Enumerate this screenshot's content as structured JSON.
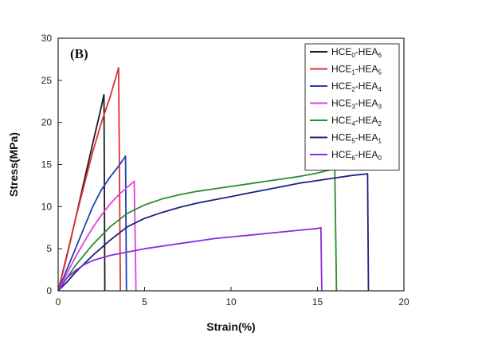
{
  "chart_data": {
    "type": "line",
    "panel_label": "(B)",
    "xlabel": "Strain(%)",
    "ylabel": "Stress(MPa)",
    "xlim": [
      0,
      20
    ],
    "ylim": [
      0,
      30
    ],
    "x_ticks": [
      "0",
      "5",
      "10",
      "15",
      "20"
    ],
    "y_ticks": [
      "0",
      "5",
      "10",
      "15",
      "20",
      "25",
      "30"
    ],
    "legend_position": "top-right",
    "series": [
      {
        "name": "HCE0-HEA6",
        "name_parts": [
          "HCE",
          "0",
          "-HEA",
          "6"
        ],
        "color": "#1a1a1a",
        "points": [
          [
            0,
            0
          ],
          [
            0.3,
            2.5
          ],
          [
            0.6,
            5
          ],
          [
            1,
            8.5
          ],
          [
            1.5,
            13
          ],
          [
            2,
            17.5
          ],
          [
            2.4,
            21
          ],
          [
            2.65,
            23.3
          ],
          [
            2.7,
            0
          ]
        ]
      },
      {
        "name": "HCE1-HEA5",
        "name_parts": [
          "HCE",
          "1",
          "-HEA",
          "5"
        ],
        "color": "#e03030",
        "points": [
          [
            0,
            0
          ],
          [
            0.5,
            4
          ],
          [
            1,
            8.5
          ],
          [
            1.5,
            12.5
          ],
          [
            2,
            16.5
          ],
          [
            2.5,
            20
          ],
          [
            3,
            23
          ],
          [
            3.5,
            26.5
          ],
          [
            3.6,
            0
          ]
        ]
      },
      {
        "name": "HCE2-HEA4",
        "name_parts": [
          "HCE",
          "2",
          "-HEA",
          "4"
        ],
        "color": "#2040b0",
        "points": [
          [
            0,
            0
          ],
          [
            0.5,
            2.5
          ],
          [
            1,
            5
          ],
          [
            1.5,
            7.5
          ],
          [
            2,
            10
          ],
          [
            2.5,
            12
          ],
          [
            3,
            13.5
          ],
          [
            3.5,
            14.8
          ],
          [
            3.9,
            16
          ],
          [
            3.95,
            0
          ]
        ]
      },
      {
        "name": "HCE3-HEA3",
        "name_parts": [
          "HCE",
          "3",
          "-HEA",
          "3"
        ],
        "color": "#e040e0",
        "points": [
          [
            0,
            0
          ],
          [
            0.5,
            2
          ],
          [
            1,
            4
          ],
          [
            1.5,
            5.8
          ],
          [
            2,
            7.5
          ],
          [
            2.5,
            9
          ],
          [
            3,
            10.3
          ],
          [
            3.5,
            11.4
          ],
          [
            4,
            12.3
          ],
          [
            4.4,
            13
          ],
          [
            4.5,
            0
          ]
        ]
      },
      {
        "name": "HCE4-HEA2",
        "name_parts": [
          "HCE",
          "4",
          "-HEA",
          "2"
        ],
        "color": "#2e8b2e",
        "points": [
          [
            0,
            0
          ],
          [
            0.5,
            1.5
          ],
          [
            1,
            3
          ],
          [
            2,
            5.5
          ],
          [
            3,
            7.6
          ],
          [
            4,
            9.2
          ],
          [
            5,
            10.2
          ],
          [
            6,
            10.9
          ],
          [
            7,
            11.4
          ],
          [
            8,
            11.8
          ],
          [
            9,
            12.1
          ],
          [
            10,
            12.4
          ],
          [
            11,
            12.7
          ],
          [
            12,
            13
          ],
          [
            13,
            13.3
          ],
          [
            14,
            13.6
          ],
          [
            15,
            14
          ],
          [
            16,
            14.5
          ],
          [
            16.1,
            0
          ]
        ]
      },
      {
        "name": "HCE5-HEA1",
        "name_parts": [
          "HCE",
          "5",
          "-HEA",
          "1"
        ],
        "color": "#1a237e",
        "points": [
          [
            0,
            0
          ],
          [
            0.5,
            1
          ],
          [
            1,
            2.2
          ],
          [
            2,
            4.2
          ],
          [
            3,
            6
          ],
          [
            4,
            7.6
          ],
          [
            5,
            8.6
          ],
          [
            6,
            9.3
          ],
          [
            7,
            9.9
          ],
          [
            8,
            10.4
          ],
          [
            9,
            10.8
          ],
          [
            10,
            11.2
          ],
          [
            11,
            11.6
          ],
          [
            12,
            12
          ],
          [
            13,
            12.4
          ],
          [
            14,
            12.8
          ],
          [
            15,
            13.1
          ],
          [
            16,
            13.4
          ],
          [
            17,
            13.7
          ],
          [
            17.9,
            13.9
          ],
          [
            17.95,
            0
          ]
        ]
      },
      {
        "name": "HCE6-HEA0",
        "name_parts": [
          "HCE",
          "6",
          "-HEA",
          "0"
        ],
        "color": "#8a2be2",
        "points": [
          [
            0,
            0
          ],
          [
            0.5,
            1.5
          ],
          [
            1,
            2.4
          ],
          [
            1.5,
            3.1
          ],
          [
            2,
            3.6
          ],
          [
            3,
            4.2
          ],
          [
            4,
            4.6
          ],
          [
            5,
            5
          ],
          [
            6,
            5.3
          ],
          [
            7,
            5.6
          ],
          [
            8,
            5.9
          ],
          [
            9,
            6.2
          ],
          [
            10,
            6.4
          ],
          [
            11,
            6.6
          ],
          [
            12,
            6.8
          ],
          [
            13,
            7
          ],
          [
            14,
            7.2
          ],
          [
            15,
            7.4
          ],
          [
            15.2,
            7.5
          ],
          [
            15.25,
            0
          ]
        ]
      }
    ]
  }
}
